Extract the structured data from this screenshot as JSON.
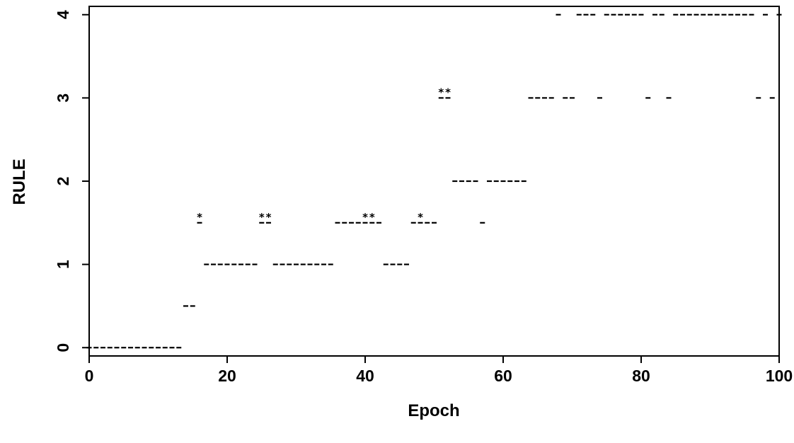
{
  "chart_data": {
    "type": "scatter",
    "title": "",
    "xlabel": "Epoch",
    "ylabel": "RULE",
    "xlim": [
      0,
      100
    ],
    "ylim": [
      -0.1,
      4.1
    ],
    "x_ticks": [
      0,
      20,
      40,
      60,
      80,
      100
    ],
    "y_ticks": [
      0,
      1,
      2,
      3,
      4
    ],
    "grid": false,
    "series": [
      {
        "marker": "dash",
        "points": [
          [
            0,
            0
          ],
          [
            1,
            0
          ],
          [
            2,
            0
          ],
          [
            3,
            0
          ],
          [
            4,
            0
          ],
          [
            5,
            0
          ],
          [
            6,
            0
          ],
          [
            7,
            0
          ],
          [
            8,
            0
          ],
          [
            9,
            0
          ],
          [
            10,
            0
          ],
          [
            11,
            0
          ],
          [
            12,
            0
          ],
          [
            13,
            0
          ],
          [
            14,
            0.5
          ],
          [
            15,
            0.5
          ],
          [
            16,
            1.5
          ],
          [
            17,
            1
          ],
          [
            18,
            1
          ],
          [
            19,
            1
          ],
          [
            20,
            1
          ],
          [
            21,
            1
          ],
          [
            22,
            1
          ],
          [
            23,
            1
          ],
          [
            24,
            1
          ],
          [
            25,
            1.5
          ],
          [
            26,
            1.5
          ],
          [
            27,
            1
          ],
          [
            28,
            1
          ],
          [
            29,
            1
          ],
          [
            30,
            1
          ],
          [
            31,
            1
          ],
          [
            32,
            1
          ],
          [
            33,
            1
          ],
          [
            34,
            1
          ],
          [
            35,
            1
          ],
          [
            36,
            1.5
          ],
          [
            37,
            1.5
          ],
          [
            38,
            1.5
          ],
          [
            39,
            1.5
          ],
          [
            40,
            1.5
          ],
          [
            41,
            1.5
          ],
          [
            42,
            1.5
          ],
          [
            43,
            1
          ],
          [
            44,
            1
          ],
          [
            45,
            1
          ],
          [
            46,
            1
          ],
          [
            47,
            1.5
          ],
          [
            48,
            1.5
          ],
          [
            49,
            1.5
          ],
          [
            50,
            1.5
          ],
          [
            51,
            3
          ],
          [
            52,
            3
          ],
          [
            53,
            2
          ],
          [
            54,
            2
          ],
          [
            55,
            2
          ],
          [
            56,
            2
          ],
          [
            57,
            1.5
          ],
          [
            58,
            2
          ],
          [
            59,
            2
          ],
          [
            60,
            2
          ],
          [
            61,
            2
          ],
          [
            62,
            2
          ],
          [
            63,
            2
          ],
          [
            64,
            3
          ],
          [
            65,
            3
          ],
          [
            66,
            3
          ],
          [
            67,
            3
          ],
          [
            68,
            4
          ],
          [
            69,
            3
          ],
          [
            70,
            3
          ],
          [
            71,
            4
          ],
          [
            72,
            4
          ],
          [
            73,
            4
          ],
          [
            74,
            3
          ],
          [
            75,
            4
          ],
          [
            76,
            4
          ],
          [
            77,
            4
          ],
          [
            78,
            4
          ],
          [
            79,
            4
          ],
          [
            80,
            4
          ],
          [
            81,
            3
          ],
          [
            82,
            4
          ],
          [
            83,
            4
          ],
          [
            84,
            3
          ],
          [
            85,
            4
          ],
          [
            86,
            4
          ],
          [
            87,
            4
          ],
          [
            88,
            4
          ],
          [
            89,
            4
          ],
          [
            90,
            4
          ],
          [
            91,
            4
          ],
          [
            92,
            4
          ],
          [
            93,
            4
          ],
          [
            94,
            4
          ],
          [
            95,
            4
          ],
          [
            96,
            4
          ],
          [
            97,
            3
          ],
          [
            98,
            4
          ],
          [
            99,
            3
          ],
          [
            100,
            4
          ]
        ]
      },
      {
        "marker": "star",
        "points": [
          [
            16,
            1.5
          ],
          [
            25,
            1.5
          ],
          [
            26,
            1.5
          ],
          [
            40,
            1.5
          ],
          [
            41,
            1.5
          ],
          [
            48,
            1.5
          ],
          [
            51,
            3
          ],
          [
            52,
            3
          ]
        ]
      }
    ]
  }
}
